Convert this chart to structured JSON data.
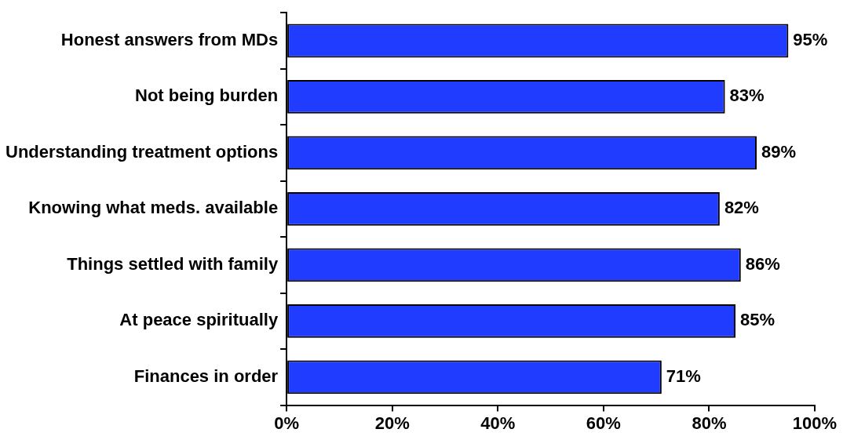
{
  "chart_data": {
    "type": "bar",
    "orientation": "horizontal",
    "categories": [
      "Honest answers from MDs",
      "Not being burden",
      "Understanding treatment options",
      "Knowing what meds. available",
      "Things settled with family",
      "At peace spiritually",
      "Finances in order"
    ],
    "values": [
      95,
      83,
      89,
      82,
      86,
      85,
      71
    ],
    "value_labels": [
      "95%",
      "83%",
      "89%",
      "82%",
      "86%",
      "85%",
      "71%"
    ],
    "color": "#1f3cff",
    "xlim": [
      0,
      100
    ],
    "xticks": [
      {
        "value": 0,
        "label": "0%"
      },
      {
        "value": 20,
        "label": "20%"
      },
      {
        "value": 40,
        "label": "40%"
      },
      {
        "value": 60,
        "label": "60%"
      },
      {
        "value": 80,
        "label": "80%"
      },
      {
        "value": 100,
        "label": "100%"
      }
    ],
    "grid": false,
    "legend": false
  }
}
